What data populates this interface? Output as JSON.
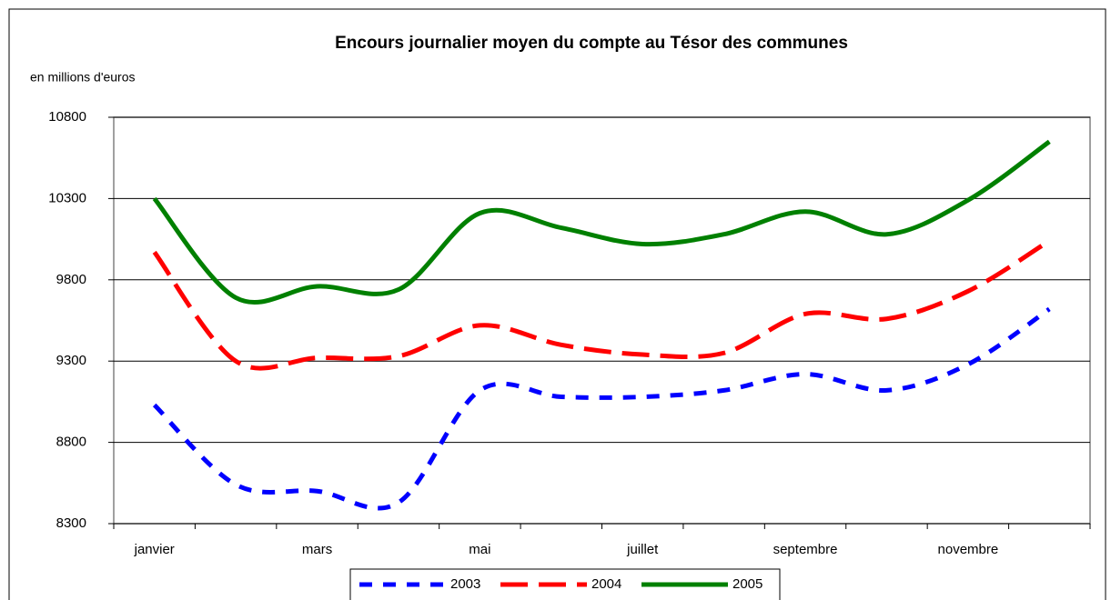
{
  "chart_data": {
    "type": "line",
    "title": "Encours journalier moyen du compte au Tésor des communes",
    "y_label": "en millions d'euros",
    "categories": [
      "janvier",
      null,
      "mars",
      null,
      "mai",
      null,
      "juillet",
      null,
      "septembre",
      null,
      "novembre",
      null
    ],
    "series": [
      {
        "name": "2003",
        "color": "#0000ff",
        "dash": "dashed",
        "values": [
          9030,
          8540,
          8500,
          8430,
          9120,
          9080,
          9080,
          9120,
          9220,
          9120,
          9280,
          9620
        ]
      },
      {
        "name": "2004",
        "color": "#ff0000",
        "dash": "long-dashed",
        "values": [
          9970,
          9300,
          9320,
          9330,
          9520,
          9400,
          9340,
          9350,
          9590,
          9560,
          9730,
          10040
        ]
      },
      {
        "name": "2005",
        "color": "#008000",
        "dash": "solid",
        "values": [
          10300,
          9690,
          9760,
          9740,
          10210,
          10120,
          10020,
          10080,
          10220,
          10080,
          10290,
          10650
        ]
      }
    ],
    "ylim": [
      8300,
      10800
    ],
    "yticks": [
      8300,
      8800,
      9300,
      9800,
      10300,
      10800
    ],
    "grid": true,
    "legend": "bottom"
  }
}
